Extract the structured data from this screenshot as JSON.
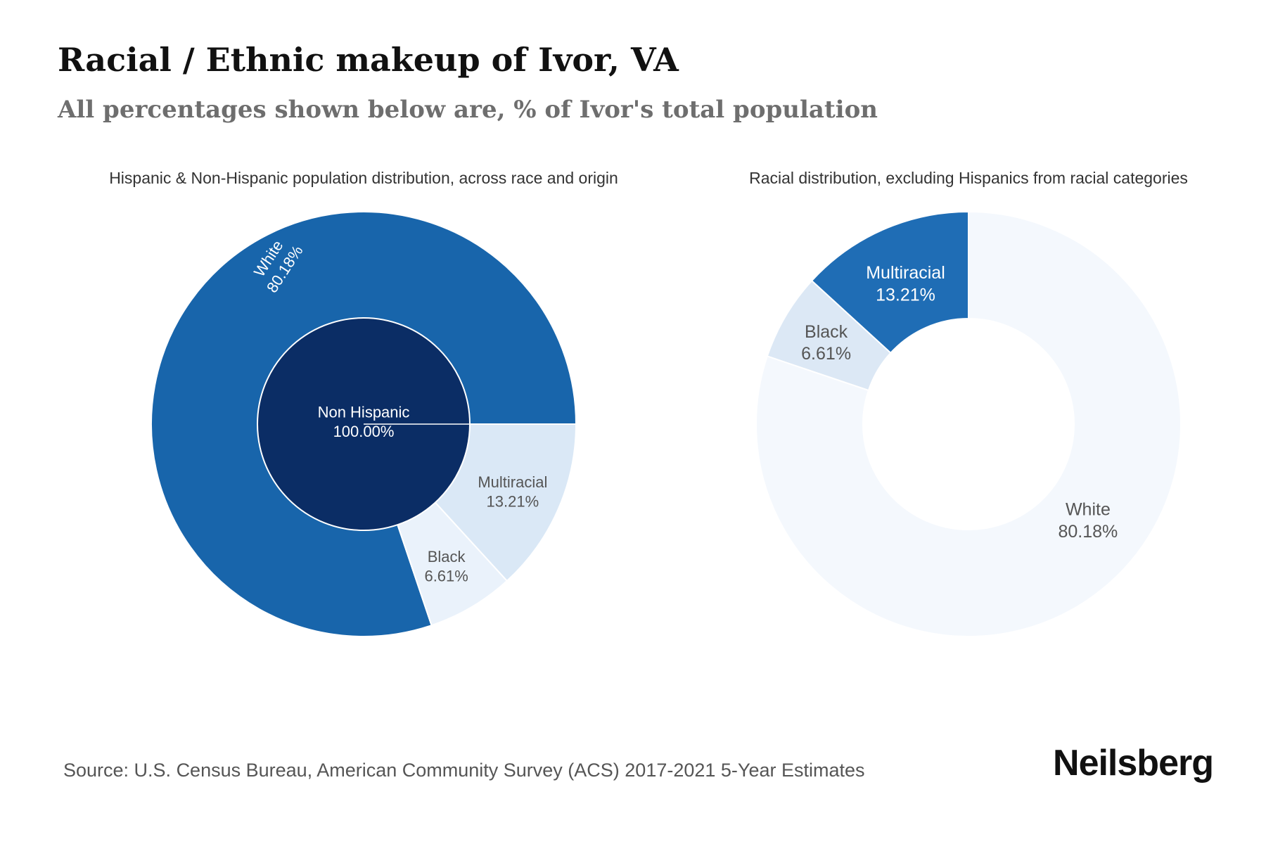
{
  "header": {
    "title": "Racial / Ethnic makeup of Ivor, VA",
    "subtitle": "All percentages shown below are, % of Ivor's total population"
  },
  "footer": {
    "source": "Source: U.S. Census Bureau, American Community Survey (ACS) 2017-2021 5-Year Estimates",
    "brand": "Neilsberg"
  },
  "chart_data": [
    {
      "type": "pie",
      "variant": "nested-donut",
      "title": "Hispanic & Non-Hispanic population distribution, across race and origin",
      "inner_ring": [
        {
          "label": "Non Hispanic",
          "value": 100.0,
          "value_label": "100.00%",
          "color": "#0b2d65"
        }
      ],
      "outer_ring": [
        {
          "label": "White",
          "value": 80.18,
          "value_label": "80.18%",
          "color": "#1865ab"
        },
        {
          "label": "Black",
          "value": 6.61,
          "value_label": "6.61%",
          "color": "#eaf2fb"
        },
        {
          "label": "Multiracial",
          "value": 13.21,
          "value_label": "13.21%",
          "color": "#dae8f6"
        }
      ]
    },
    {
      "type": "pie",
      "variant": "donut",
      "title": "Racial distribution, excluding Hispanics from racial categories",
      "slices": [
        {
          "label": "White",
          "value": 80.18,
          "value_label": "80.18%",
          "color": "#f4f8fd"
        },
        {
          "label": "Black",
          "value": 6.61,
          "value_label": "6.61%",
          "color": "#dce8f5"
        },
        {
          "label": "Multiracial",
          "value": 13.21,
          "value_label": "13.21%",
          "color": "#1f6db5"
        }
      ]
    }
  ]
}
